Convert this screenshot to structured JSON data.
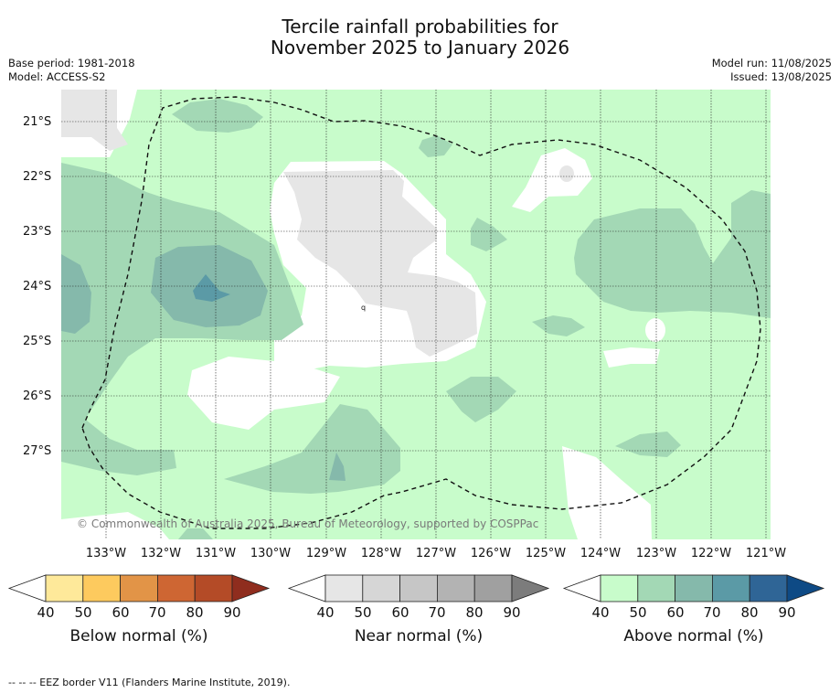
{
  "title_line1": "Tercile rainfall probabilities for",
  "title_line2": "November 2025 to January 2026",
  "meta_left": {
    "base_period": "Base period: 1981-2018",
    "model": "Model: ACCESS-S2"
  },
  "meta_right": {
    "model_run": "Model run: 11/08/2025",
    "issued": "Issued: 13/08/2025"
  },
  "lat_labels": [
    "21°S",
    "22°S",
    "23°S",
    "24°S",
    "25°S",
    "26°S",
    "27°S"
  ],
  "lon_labels": [
    "133°W",
    "132°W",
    "131°W",
    "130°W",
    "129°W",
    "128°W",
    "127°W",
    "126°W",
    "125°W",
    "124°W",
    "123°W",
    "122°W",
    "121°W"
  ],
  "copyright": "© Commonwealth of Australia 2025, Bureau of Meteorology, supported by COSPPac",
  "small_marker": "q",
  "colorbars": [
    {
      "title": "Below normal (%)",
      "ticks": [
        "40",
        "50",
        "60",
        "70",
        "80",
        "90"
      ],
      "colors": [
        "#ffffff",
        "#fee99a",
        "#fdca5e",
        "#e29447",
        "#ce6633",
        "#b44b27",
        "#8f2d1e"
      ]
    },
    {
      "title": "Near normal (%)",
      "ticks": [
        "40",
        "50",
        "60",
        "70",
        "80",
        "90"
      ],
      "colors": [
        "#ffffff",
        "#e6e6e6",
        "#d6d6d6",
        "#c6c6c6",
        "#b3b3b3",
        "#a0a0a0",
        "#7c7c7c"
      ]
    },
    {
      "title": "Above normal (%)",
      "ticks": [
        "40",
        "50",
        "60",
        "70",
        "80",
        "90"
      ],
      "colors": [
        "#ffffff",
        "#c8fccb",
        "#a3d8b5",
        "#85b9ab",
        "#5b9aa6",
        "#2f6596",
        "#0e4a85"
      ]
    }
  ],
  "footer": "--  --  -- EEZ border V11 (Flanders Marine Institute, 2019)."
}
